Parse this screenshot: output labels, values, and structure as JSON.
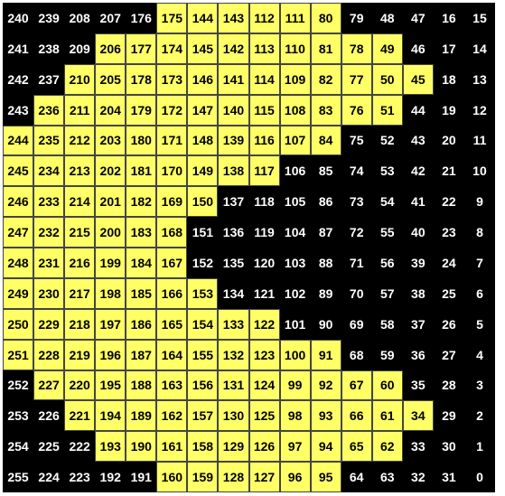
{
  "colors": {
    "on": "#ffff66",
    "off": "#000000",
    "on_text": "#000000",
    "off_text": "#ffffff"
  },
  "grid": {
    "rows": [
      [
        240,
        239,
        208,
        207,
        176,
        175,
        144,
        143,
        112,
        111,
        80,
        79,
        48,
        47,
        16,
        15
      ],
      [
        241,
        238,
        209,
        206,
        177,
        174,
        145,
        142,
        113,
        110,
        81,
        78,
        49,
        46,
        17,
        14
      ],
      [
        242,
        237,
        210,
        205,
        178,
        173,
        146,
        141,
        114,
        109,
        82,
        77,
        50,
        45,
        18,
        13
      ],
      [
        243,
        236,
        211,
        204,
        179,
        172,
        147,
        140,
        115,
        108,
        83,
        76,
        51,
        44,
        19,
        12
      ],
      [
        244,
        235,
        212,
        203,
        180,
        171,
        148,
        139,
        116,
        107,
        84,
        75,
        52,
        43,
        20,
        11
      ],
      [
        245,
        234,
        213,
        202,
        181,
        170,
        149,
        138,
        117,
        106,
        85,
        74,
        53,
        42,
        21,
        10
      ],
      [
        246,
        233,
        214,
        201,
        182,
        169,
        150,
        137,
        118,
        105,
        86,
        73,
        54,
        41,
        22,
        9
      ],
      [
        247,
        232,
        215,
        200,
        183,
        168,
        151,
        136,
        119,
        104,
        87,
        72,
        55,
        40,
        23,
        8
      ],
      [
        248,
        231,
        216,
        199,
        184,
        167,
        152,
        135,
        120,
        103,
        88,
        71,
        56,
        39,
        24,
        7
      ],
      [
        249,
        230,
        217,
        198,
        185,
        166,
        153,
        134,
        121,
        102,
        89,
        70,
        57,
        38,
        25,
        6
      ],
      [
        250,
        229,
        218,
        197,
        186,
        165,
        154,
        133,
        122,
        101,
        90,
        69,
        58,
        37,
        26,
        5
      ],
      [
        251,
        228,
        219,
        196,
        187,
        164,
        155,
        132,
        123,
        100,
        91,
        68,
        59,
        36,
        27,
        4
      ],
      [
        252,
        227,
        220,
        195,
        188,
        163,
        156,
        131,
        124,
        99,
        92,
        67,
        60,
        35,
        28,
        3
      ],
      [
        253,
        226,
        221,
        194,
        189,
        162,
        157,
        130,
        125,
        98,
        93,
        66,
        61,
        34,
        29,
        2
      ],
      [
        254,
        225,
        222,
        193,
        190,
        161,
        158,
        129,
        126,
        97,
        94,
        65,
        62,
        33,
        30,
        1
      ],
      [
        255,
        224,
        223,
        192,
        191,
        160,
        159,
        128,
        127,
        96,
        95,
        64,
        63,
        32,
        31,
        0
      ]
    ],
    "on": [
      [
        0,
        0,
        0,
        0,
        0,
        1,
        1,
        1,
        1,
        1,
        1,
        0,
        0,
        0,
        0,
        0
      ],
      [
        0,
        0,
        0,
        1,
        1,
        1,
        1,
        1,
        1,
        1,
        1,
        1,
        1,
        0,
        0,
        0
      ],
      [
        0,
        0,
        1,
        1,
        1,
        1,
        1,
        1,
        1,
        1,
        1,
        1,
        1,
        1,
        0,
        0
      ],
      [
        0,
        1,
        1,
        1,
        1,
        1,
        1,
        1,
        1,
        1,
        1,
        1,
        1,
        0,
        0,
        0
      ],
      [
        1,
        1,
        1,
        1,
        1,
        1,
        1,
        1,
        1,
        1,
        1,
        0,
        0,
        0,
        0,
        0
      ],
      [
        1,
        1,
        1,
        1,
        1,
        1,
        1,
        1,
        1,
        0,
        0,
        0,
        0,
        0,
        0,
        0
      ],
      [
        1,
        1,
        1,
        1,
        1,
        1,
        1,
        0,
        0,
        0,
        0,
        0,
        0,
        0,
        0,
        0
      ],
      [
        1,
        1,
        1,
        1,
        1,
        1,
        0,
        0,
        0,
        0,
        0,
        0,
        0,
        0,
        0,
        0
      ],
      [
        1,
        1,
        1,
        1,
        1,
        1,
        0,
        0,
        0,
        0,
        0,
        0,
        0,
        0,
        0,
        0
      ],
      [
        1,
        1,
        1,
        1,
        1,
        1,
        1,
        0,
        0,
        0,
        0,
        0,
        0,
        0,
        0,
        0
      ],
      [
        1,
        1,
        1,
        1,
        1,
        1,
        1,
        1,
        1,
        0,
        0,
        0,
        0,
        0,
        0,
        0
      ],
      [
        1,
        1,
        1,
        1,
        1,
        1,
        1,
        1,
        1,
        1,
        1,
        0,
        0,
        0,
        0,
        0
      ],
      [
        0,
        1,
        1,
        1,
        1,
        1,
        1,
        1,
        1,
        1,
        1,
        1,
        1,
        0,
        0,
        0
      ],
      [
        0,
        0,
        1,
        1,
        1,
        1,
        1,
        1,
        1,
        1,
        1,
        1,
        1,
        1,
        0,
        0
      ],
      [
        0,
        0,
        0,
        1,
        1,
        1,
        1,
        1,
        1,
        1,
        1,
        1,
        1,
        0,
        0,
        0
      ],
      [
        0,
        0,
        0,
        0,
        0,
        1,
        1,
        1,
        1,
        1,
        1,
        0,
        0,
        0,
        0,
        0
      ]
    ]
  }
}
